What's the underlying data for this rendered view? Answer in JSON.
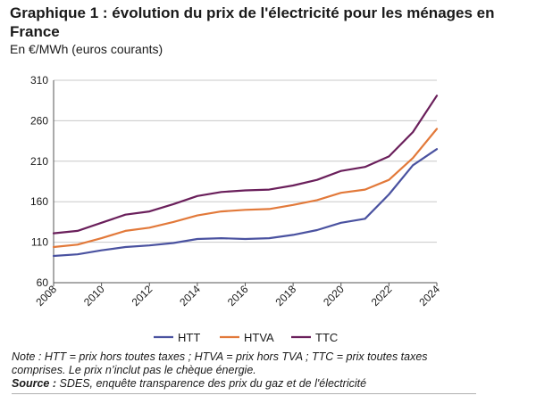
{
  "chart_data": {
    "type": "line",
    "title": "Graphique 1 : évolution du prix de l'électricité pour les ménages en France",
    "subtitle": "En €/MWh (euros courants)",
    "xlabel": "",
    "ylabel": "",
    "x": [
      2008,
      2009,
      2010,
      2011,
      2012,
      2013,
      2014,
      2015,
      2016,
      2017,
      2018,
      2019,
      2020,
      2021,
      2022,
      2023,
      2024
    ],
    "xticks": [
      "2008",
      "2010",
      "2012",
      "2014",
      "2016",
      "2018",
      "2020",
      "2022",
      "2024"
    ],
    "yticks": [
      "60",
      "110",
      "160",
      "210",
      "260",
      "310"
    ],
    "xlim": [
      2008,
      2024
    ],
    "ylim": [
      60,
      310
    ],
    "grid": true,
    "legend_position": "bottom",
    "series": [
      {
        "name": "HTT",
        "color": "#4a52a0",
        "values": [
          93,
          95,
          100,
          104,
          106,
          109,
          114,
          115,
          114,
          115,
          119,
          125,
          134,
          139,
          169,
          205,
          225
        ]
      },
      {
        "name": "HTVA",
        "color": "#e2793a",
        "values": [
          104,
          107,
          115,
          124,
          128,
          135,
          143,
          148,
          150,
          151,
          156,
          162,
          171,
          175,
          187,
          214,
          250
        ]
      },
      {
        "name": "TTC",
        "color": "#6a1f5b",
        "values": [
          121,
          124,
          134,
          144,
          148,
          157,
          167,
          172,
          174,
          175,
          180,
          187,
          198,
          203,
          216,
          246,
          291
        ]
      }
    ]
  },
  "footer": {
    "note": "Note : HTT = prix hors toutes taxes ; HTVA = prix hors TVA ; TTC = prix toutes taxes comprises. Le prix n’inclut pas le chèque énergie.",
    "source_label": "Source :",
    "source_text": " SDES, enquête transparence des prix du gaz et de l'électricité"
  }
}
